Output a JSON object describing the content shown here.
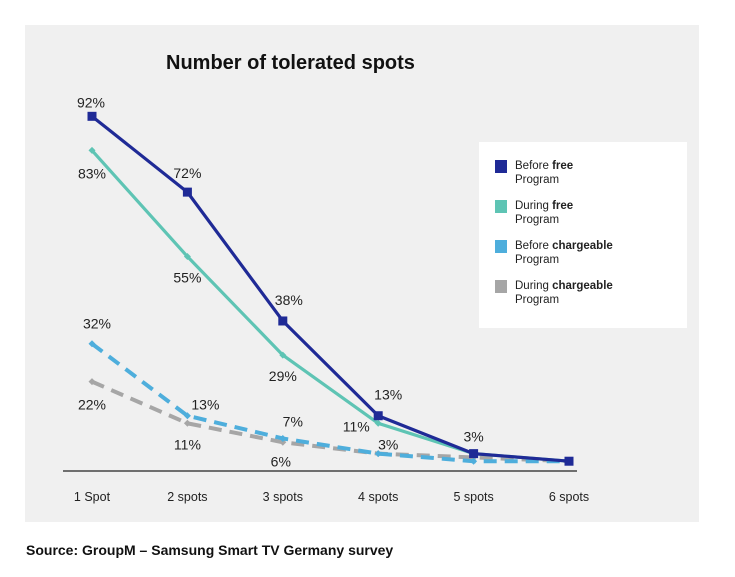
{
  "chart_data": {
    "type": "line",
    "title": "Number of tolerated spots",
    "xlabel": "",
    "ylabel": "",
    "categories": [
      "1 Spot",
      "2 spots",
      "3 spots",
      "4 spots",
      "5 spots",
      "6 spots"
    ],
    "ylim": [
      0,
      100
    ],
    "grid": false,
    "legend_position": "right",
    "series": [
      {
        "name": "Before free Program",
        "name_plain": "Before ",
        "name_bold": "free",
        "name_line2": "Program",
        "color": "#1f2a96",
        "dashed": false,
        "marker": "square",
        "values": [
          92,
          72,
          38,
          13,
          3,
          1
        ],
        "labels": [
          "92%",
          "72%",
          "38%",
          "13%",
          "3%",
          ""
        ]
      },
      {
        "name": "During free Program",
        "name_plain": "During ",
        "name_bold": "free",
        "name_line2": "Program",
        "color": "#5ec4b4",
        "dashed": false,
        "marker": "diamond",
        "values": [
          83,
          55,
          29,
          11,
          3,
          1
        ],
        "labels": [
          "83%",
          "55%",
          "29%",
          "11%",
          "",
          ""
        ]
      },
      {
        "name": "Before chargeable Program",
        "name_plain": "Before ",
        "name_bold": "chargeable",
        "name_line2": "Program",
        "color": "#4eaedc",
        "dashed": true,
        "marker": "diamond",
        "values": [
          32,
          13,
          7,
          3,
          1,
          1
        ],
        "labels": [
          "32%",
          "13%",
          "7%",
          "",
          "",
          ""
        ]
      },
      {
        "name": "During chargeable Program",
        "name_plain": "During ",
        "name_bold": "chargeable",
        "name_line2": "Program",
        "color": "#a6a6a6",
        "dashed": true,
        "marker": "diamond",
        "values": [
          22,
          11,
          6,
          3,
          2,
          1
        ],
        "labels": [
          "22%",
          "11%",
          "6%",
          "3%",
          "",
          ""
        ]
      }
    ]
  },
  "source": "Source: GroupM – Samsung Smart TV Germany survey"
}
